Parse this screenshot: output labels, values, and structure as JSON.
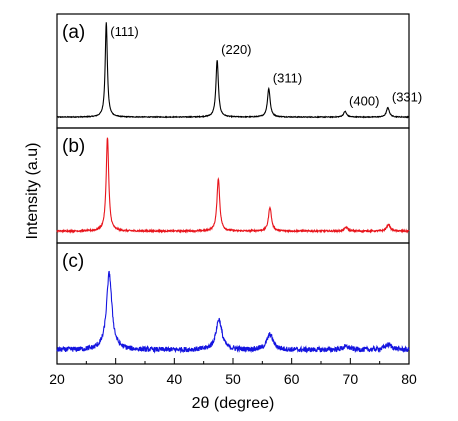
{
  "chart_data": {
    "type": "line",
    "xlabel": "2θ (degree)",
    "ylabel": "Intensity (a.u)",
    "xlim": [
      20,
      80
    ],
    "xticks": [
      "20",
      "30",
      "40",
      "50",
      "60",
      "70",
      "80"
    ],
    "grid": false,
    "legend": "none",
    "panels": [
      {
        "label": "(a)",
        "color": "#000000",
        "noise": 0.004,
        "baseline": 0.02,
        "peaks": [
          {
            "pos": 28.4,
            "height": 1.0,
            "width": 0.22
          },
          {
            "pos": 47.3,
            "height": 0.6,
            "width": 0.25
          },
          {
            "pos": 56.1,
            "height": 0.3,
            "width": 0.28
          },
          {
            "pos": 69.1,
            "height": 0.06,
            "width": 0.3
          },
          {
            "pos": 76.4,
            "height": 0.1,
            "width": 0.3
          }
        ],
        "annotations": [
          {
            "text": "(111)",
            "x": 28.4
          },
          {
            "text": "(220)",
            "x": 47.3
          },
          {
            "text": "(311)",
            "x": 56.1
          },
          {
            "text": "(400)",
            "x": 69.1
          },
          {
            "text": "(331)",
            "x": 76.4
          }
        ]
      },
      {
        "label": "(b)",
        "color": "#e8141b",
        "noise": 0.008,
        "baseline": 0.03,
        "peaks": [
          {
            "pos": 28.6,
            "height": 0.98,
            "width": 0.26
          },
          {
            "pos": 47.5,
            "height": 0.55,
            "width": 0.28
          },
          {
            "pos": 56.3,
            "height": 0.25,
            "width": 0.3
          },
          {
            "pos": 69.3,
            "height": 0.04,
            "width": 0.35
          },
          {
            "pos": 76.5,
            "height": 0.07,
            "width": 0.35
          }
        ],
        "annotations": []
      },
      {
        "label": "(c)",
        "color": "#1414e0",
        "noise": 0.025,
        "baseline": 0.05,
        "peaks": [
          {
            "pos": 28.9,
            "height": 0.75,
            "width": 0.55
          },
          {
            "pos": 47.6,
            "height": 0.3,
            "width": 0.6
          },
          {
            "pos": 56.3,
            "height": 0.15,
            "width": 0.65
          },
          {
            "pos": 69.3,
            "height": 0.03,
            "width": 0.8
          },
          {
            "pos": 76.5,
            "height": 0.05,
            "width": 0.8
          }
        ],
        "annotations": []
      }
    ]
  }
}
